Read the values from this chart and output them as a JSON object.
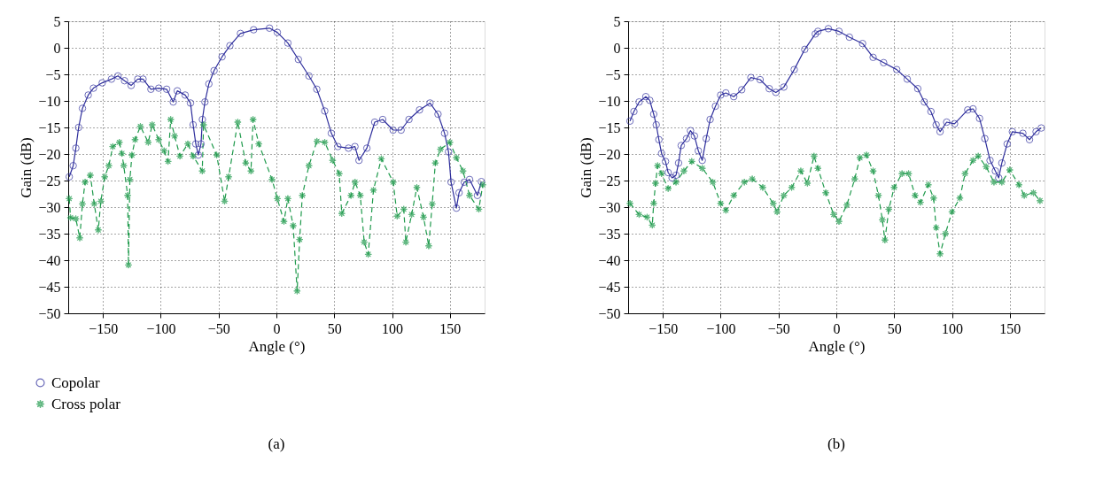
{
  "chart_data": [
    {
      "type": "line",
      "xlabel": "Angle (°)",
      "ylabel": "Gain (dB)",
      "xlim": [
        -180,
        180
      ],
      "xticks": [
        -150,
        -100,
        -50,
        0,
        50,
        100,
        150
      ],
      "ylim": [
        -50,
        5
      ],
      "yticks": [
        -50,
        -45,
        -40,
        -35,
        -30,
        -25,
        -20,
        -15,
        -10,
        -5,
        0,
        5
      ],
      "grid": true,
      "legend": "bottom left",
      "annotations": [
        "(a)"
      ],
      "series": [
        {
          "name": "Copolar",
          "color": "#2e2e9c",
          "marker": "circle",
          "line_style": "solid",
          "x": [
            -179.1,
            -175.7,
            -173.4,
            -171,
            -167.7,
            -162.7,
            -158.2,
            -150.6,
            -142.6,
            -137,
            -131.3,
            -125.6,
            -119.9,
            -115.3,
            -108.5,
            -101.7,
            -94.9,
            -89.2,
            -85.7,
            -78.9,
            -74.3,
            -72,
            -69.7,
            -67.5,
            -65.2,
            -64,
            -61.8,
            -58.4,
            -53.9,
            -47,
            -40.2,
            -31.1,
            -19.7,
            -6,
            0.8,
            9.9,
            19,
            28.1,
            34.9,
            41.8,
            47.5,
            53.1,
            62.3,
            67.9,
            71.4,
            78.2,
            85,
            91.9,
            100.9,
            107.8,
            114.6,
            123.7,
            132.8,
            139.7,
            145.4,
            148.8,
            151,
            155.6,
            157.9,
            162.4,
            167,
            173.8,
            177.2
          ],
          "values": [
            -24.3,
            -22.2,
            -18.9,
            -15,
            -11.4,
            -8.9,
            -7.6,
            -6.6,
            -5.9,
            -5.3,
            -6.2,
            -7.1,
            -5.9,
            -5.9,
            -7.8,
            -7.6,
            -7.8,
            -10.2,
            -8.1,
            -8.9,
            -10.4,
            -14.5,
            -18.1,
            -20.2,
            -18.1,
            -13.5,
            -10.2,
            -6.8,
            -4.3,
            -1.7,
            0.4,
            2.7,
            3.4,
            3.7,
            2.9,
            0.9,
            -2.2,
            -5.3,
            -7.8,
            -11.9,
            -16.1,
            -18.6,
            -18.9,
            -18.6,
            -21.2,
            -18.9,
            -14,
            -13.5,
            -15.5,
            -15.5,
            -13.5,
            -11.7,
            -10.4,
            -12.5,
            -16.1,
            -19.6,
            -25.3,
            -30.2,
            -27.3,
            -25.3,
            -24.8,
            -27.8,
            -25.2
          ]
        },
        {
          "name": "Cross polar",
          "color": "#1f9a4c",
          "marker": "star",
          "line_style": "dashed",
          "x": [
            -179.1,
            -178,
            -173.4,
            -170,
            -167.7,
            -165.4,
            -160.9,
            -157.5,
            -154,
            -151.8,
            -148.4,
            -144.9,
            -141.5,
            -135.8,
            -133.6,
            -132,
            -128.6,
            -127.9,
            -126.7,
            -124.9,
            -122.2,
            -117.6,
            -110.8,
            -107.4,
            -101.7,
            -97.1,
            -93.7,
            -91.4,
            -88,
            -83.4,
            -76.6,
            -72,
            -64.1,
            -63,
            -51.6,
            -44.8,
            -41.3,
            -33.4,
            -26.5,
            -22,
            -20.2,
            -15.2,
            -3.8,
            0.8,
            6.5,
            9.9,
            14.5,
            17.9,
            20.1,
            22.4,
            28.1,
            35,
            41.8,
            48.6,
            54.3,
            56.5,
            64.5,
            68,
            72.5,
            75.9,
            79.4,
            83.9,
            90.7,
            101,
            104.4,
            110.1,
            111.9,
            116.9,
            121.4,
            127.2,
            131.7,
            134.7,
            137.4,
            141.9,
            149.9,
            155.6,
            161.3,
            167,
            175,
            178.4
          ],
          "values": [
            -28.4,
            -32,
            -32.2,
            -35.8,
            -29.4,
            -25.3,
            -24,
            -29.4,
            -34.3,
            -28.9,
            -24.3,
            -22.2,
            -18.6,
            -17.8,
            -19.9,
            -22.2,
            -27.8,
            -40.9,
            -24.8,
            -20.2,
            -17.3,
            -14.8,
            -17.8,
            -14.5,
            -17.3,
            -19.4,
            -21.4,
            -13.5,
            -16.6,
            -20.4,
            -18.1,
            -20.4,
            -23.2,
            -14.5,
            -20.2,
            -28.9,
            -24.3,
            -14,
            -21.7,
            -23.2,
            -13.5,
            -18.1,
            -24.8,
            -28.4,
            -32.7,
            -28.4,
            -33.5,
            -45.8,
            -36.1,
            -27.8,
            -22.2,
            -17.6,
            -17.8,
            -21.2,
            -23.7,
            -31.2,
            -27.8,
            -25.3,
            -27.8,
            -36.6,
            -38.9,
            -26.8,
            -20.9,
            -25.3,
            -31.7,
            -30.4,
            -36.6,
            -31.4,
            -26.3,
            -31.9,
            -37.3,
            -29.4,
            -21.7,
            -19.1,
            -17.8,
            -20.7,
            -23.2,
            -27.8,
            -30.4,
            -25.8
          ]
        }
      ]
    },
    {
      "type": "line",
      "xlabel": "Angle (°)",
      "ylabel": "Gain (dB)",
      "xlim": [
        -180,
        180
      ],
      "xticks": [
        -150,
        -100,
        -50,
        0,
        50,
        100,
        150
      ],
      "ylim": [
        -50,
        5
      ],
      "yticks": [
        -50,
        -45,
        -40,
        -35,
        -30,
        -25,
        -20,
        -15,
        -10,
        -5,
        0,
        5
      ],
      "grid": true,
      "legend": "bottom left",
      "annotations": [
        "(b)"
      ],
      "series": [
        {
          "name": "Copolar",
          "color": "#2e2e9c",
          "marker": "circle",
          "line_style": "solid",
          "x": [
            -178.4,
            -175,
            -170.5,
            -164.7,
            -161.3,
            -157.9,
            -155.7,
            -153.4,
            -151.1,
            -147.7,
            -145.4,
            -142,
            -138.6,
            -136.4,
            -134.1,
            -129.5,
            -126.1,
            -122.7,
            -119.3,
            -115.9,
            -112.5,
            -109.1,
            -104.5,
            -100,
            -95.5,
            -88.7,
            -81.8,
            -73.9,
            -65.9,
            -58,
            -52.3,
            -45.4,
            -36.4,
            -27.3,
            -18.2,
            -15.9,
            -6.9,
            2.3,
            11.3,
            22.7,
            31.8,
            40.9,
            52.2,
            61.3,
            70.4,
            76.1,
            81.8,
            86.3,
            89.7,
            95.4,
            102.2,
            113.6,
            118.2,
            123.8,
            128.4,
            132.9,
            137.5,
            140.4,
            143.1,
            147.7,
            152.2,
            161.3,
            167,
            172.7,
            177.2
          ],
          "values": [
            -13.8,
            -12,
            -10.2,
            -9.2,
            -9.9,
            -12.5,
            -14.5,
            -17.3,
            -19.9,
            -21.4,
            -23.5,
            -24.5,
            -24,
            -21.7,
            -18.4,
            -17.1,
            -15.6,
            -16.6,
            -19.4,
            -21.2,
            -17.1,
            -13.5,
            -11,
            -8.9,
            -8.5,
            -9.2,
            -7.9,
            -5.6,
            -6,
            -7.7,
            -8.4,
            -7.4,
            -4.1,
            -0.3,
            2.6,
            3.1,
            3.6,
            3.1,
            2,
            0.8,
            -1.8,
            -2.8,
            -4.1,
            -5.9,
            -7.7,
            -10.2,
            -12,
            -14.5,
            -15.8,
            -14,
            -14.3,
            -11.7,
            -11.5,
            -13.3,
            -17.1,
            -21.2,
            -23.2,
            -24.5,
            -21.7,
            -18.1,
            -15.8,
            -16.1,
            -17.3,
            -15.8,
            -15.1
          ]
        },
        {
          "name": "Cross polar",
          "color": "#1f9a4c",
          "marker": "star",
          "line_style": "dashed",
          "x": [
            -178.4,
            -170.5,
            -163.6,
            -159.1,
            -157.9,
            -156.3,
            -154.5,
            -151.1,
            -145.4,
            -138.6,
            -131.8,
            -125,
            -115.9,
            -106.8,
            -100,
            -95.5,
            -88.6,
            -79.5,
            -72.7,
            -63.6,
            -54.6,
            -51.2,
            -45.4,
            -38.6,
            -30.7,
            -25,
            -19.3,
            -15.9,
            -9.1,
            -2.3,
            2.3,
            9.1,
            15.9,
            20.4,
            26.1,
            31.8,
            36.4,
            39.8,
            42,
            45.4,
            50,
            56.8,
            62.5,
            68.1,
            72.7,
            79.5,
            84.1,
            86.3,
            89.7,
            94.3,
            100,
            106.8,
            111.3,
            118.2,
            122.7,
            129.5,
            136.3,
            143.1,
            149.9,
            157.9,
            162.5,
            170.4,
            176.1
          ],
          "values": [
            -29.3,
            -31.4,
            -31.9,
            -33.4,
            -29.3,
            -25.5,
            -22.2,
            -23.7,
            -26.5,
            -25.3,
            -23.2,
            -21.4,
            -22.7,
            -25.3,
            -29.3,
            -30.6,
            -27.8,
            -25.3,
            -24.7,
            -26.3,
            -29.3,
            -30.9,
            -27.8,
            -26.3,
            -23.2,
            -25.5,
            -20.4,
            -22.7,
            -27.3,
            -31.4,
            -32.7,
            -29.6,
            -24.7,
            -20.7,
            -20.2,
            -23.2,
            -27.8,
            -32.4,
            -36.2,
            -30.4,
            -26.3,
            -23.7,
            -23.7,
            -27.8,
            -29.1,
            -25.8,
            -28.3,
            -33.9,
            -38.8,
            -35,
            -30.9,
            -28.3,
            -23.7,
            -21.2,
            -20.4,
            -22.4,
            -25.3,
            -25.3,
            -23,
            -25.8,
            -27.8,
            -27.3,
            -28.8
          ]
        }
      ]
    }
  ]
}
